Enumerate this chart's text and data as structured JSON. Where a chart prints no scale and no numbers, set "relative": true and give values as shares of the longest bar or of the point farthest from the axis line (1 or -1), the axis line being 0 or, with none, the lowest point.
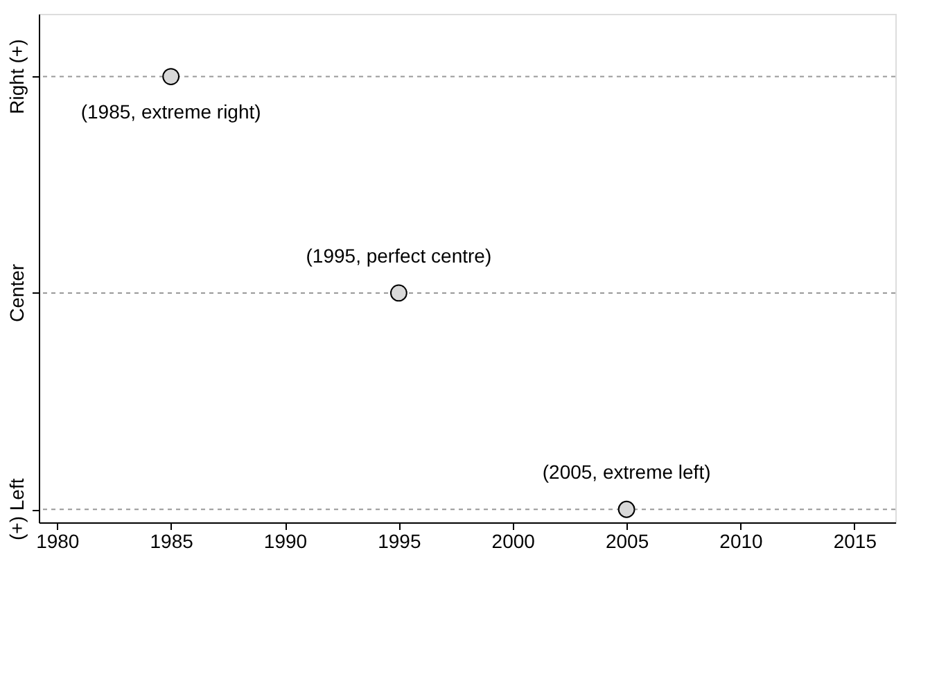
{
  "chart_data": {
    "type": "scatter",
    "x": [
      1985,
      1995,
      2005
    ],
    "series": [
      {
        "color": "#d9d9d9",
        "values": [
          1,
          0,
          -1
        ]
      }
    ],
    "relative": true,
    "xlim": [
      1979.2,
      2016.8
    ],
    "xticks": [
      1980,
      1985,
      1990,
      1995,
      2000,
      2005,
      2010,
      2015
    ],
    "marker": "circle",
    "ref_lines": [
      {
        "axis": "y",
        "value": -1,
        "label": "(+) Left",
        "color": "#999999",
        "line_style": "dashed"
      },
      {
        "axis": "y",
        "value": 0,
        "label": "Center",
        "color": "#999999",
        "line_style": "dashed"
      },
      {
        "axis": "y",
        "value": 1,
        "label": "Right (+)",
        "color": "#999999",
        "line_style": "dashed"
      }
    ],
    "annotations": [
      {
        "text": "(1985, extreme right)",
        "x": 1985,
        "y": 1
      },
      {
        "text": "(1995, perfect centre)",
        "x": 1995,
        "y": 0
      },
      {
        "text": "(2005, extreme left)",
        "x": 2005,
        "y": -1
      }
    ]
  }
}
